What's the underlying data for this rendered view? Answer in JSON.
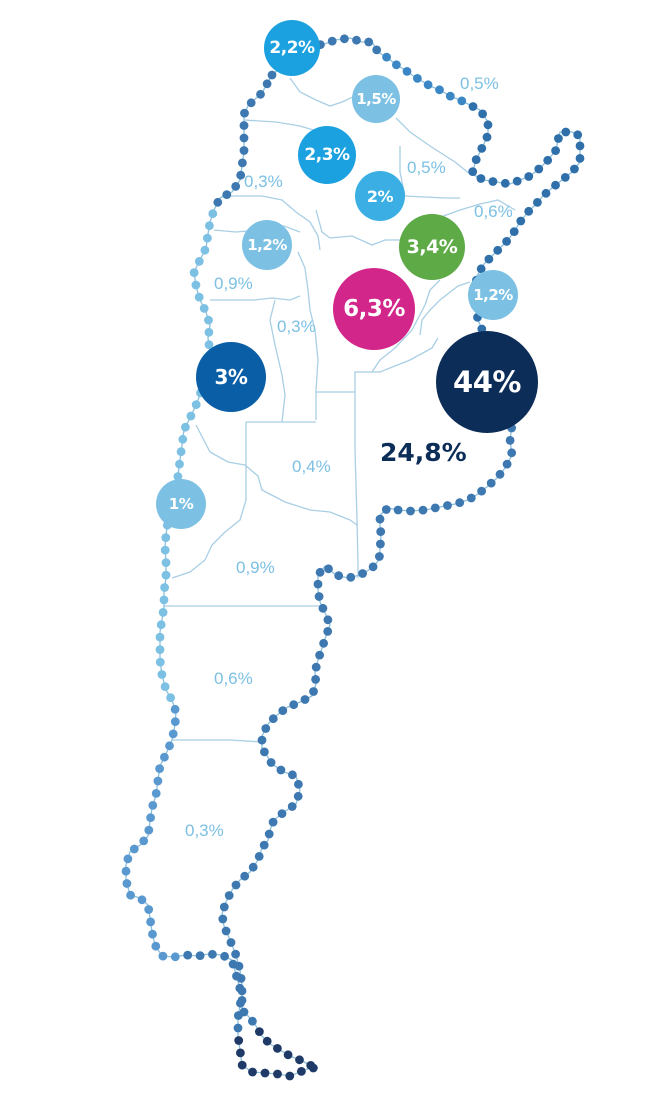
{
  "colors": {
    "light_blue": "#7cc0e3",
    "mid_blue": "#1ba1df",
    "royal_blue": "#0a5ea6",
    "navy": "#0c2d58",
    "magenta": "#d2268a",
    "green": "#5daa47",
    "border": "#a9cfe5"
  },
  "regions": [
    {
      "id": "jujuy",
      "label": "2,2%"
    },
    {
      "id": "salta",
      "label": "1,5%"
    },
    {
      "id": "formosa",
      "label": "0,5%"
    },
    {
      "id": "tucuman",
      "label": "2,3%"
    },
    {
      "id": "catamarca",
      "label": "0,3%"
    },
    {
      "id": "chaco",
      "label": "0,5%"
    },
    {
      "id": "santiago-del-estero",
      "label": "2%"
    },
    {
      "id": "misiones",
      "label": "0,6%"
    },
    {
      "id": "la-rioja",
      "label": "1,2%"
    },
    {
      "id": "santa-fe",
      "label": "3,4%"
    },
    {
      "id": "san-juan",
      "label": "0,9%"
    },
    {
      "id": "cordoba",
      "label": "6,3%"
    },
    {
      "id": "corrientes",
      "label": "1,2%"
    },
    {
      "id": "san-luis",
      "label": "0,3%"
    },
    {
      "id": "mendoza",
      "label": "3%"
    },
    {
      "id": "caba",
      "label": "44%"
    },
    {
      "id": "buenos-aires",
      "label": "24,8%"
    },
    {
      "id": "la-pampa",
      "label": "0,4%"
    },
    {
      "id": "neuquen",
      "label": "1%"
    },
    {
      "id": "rio-negro",
      "label": "0,9%"
    },
    {
      "id": "chubut",
      "label": "0,6%"
    },
    {
      "id": "santa-cruz",
      "label": "0,3%"
    }
  ]
}
